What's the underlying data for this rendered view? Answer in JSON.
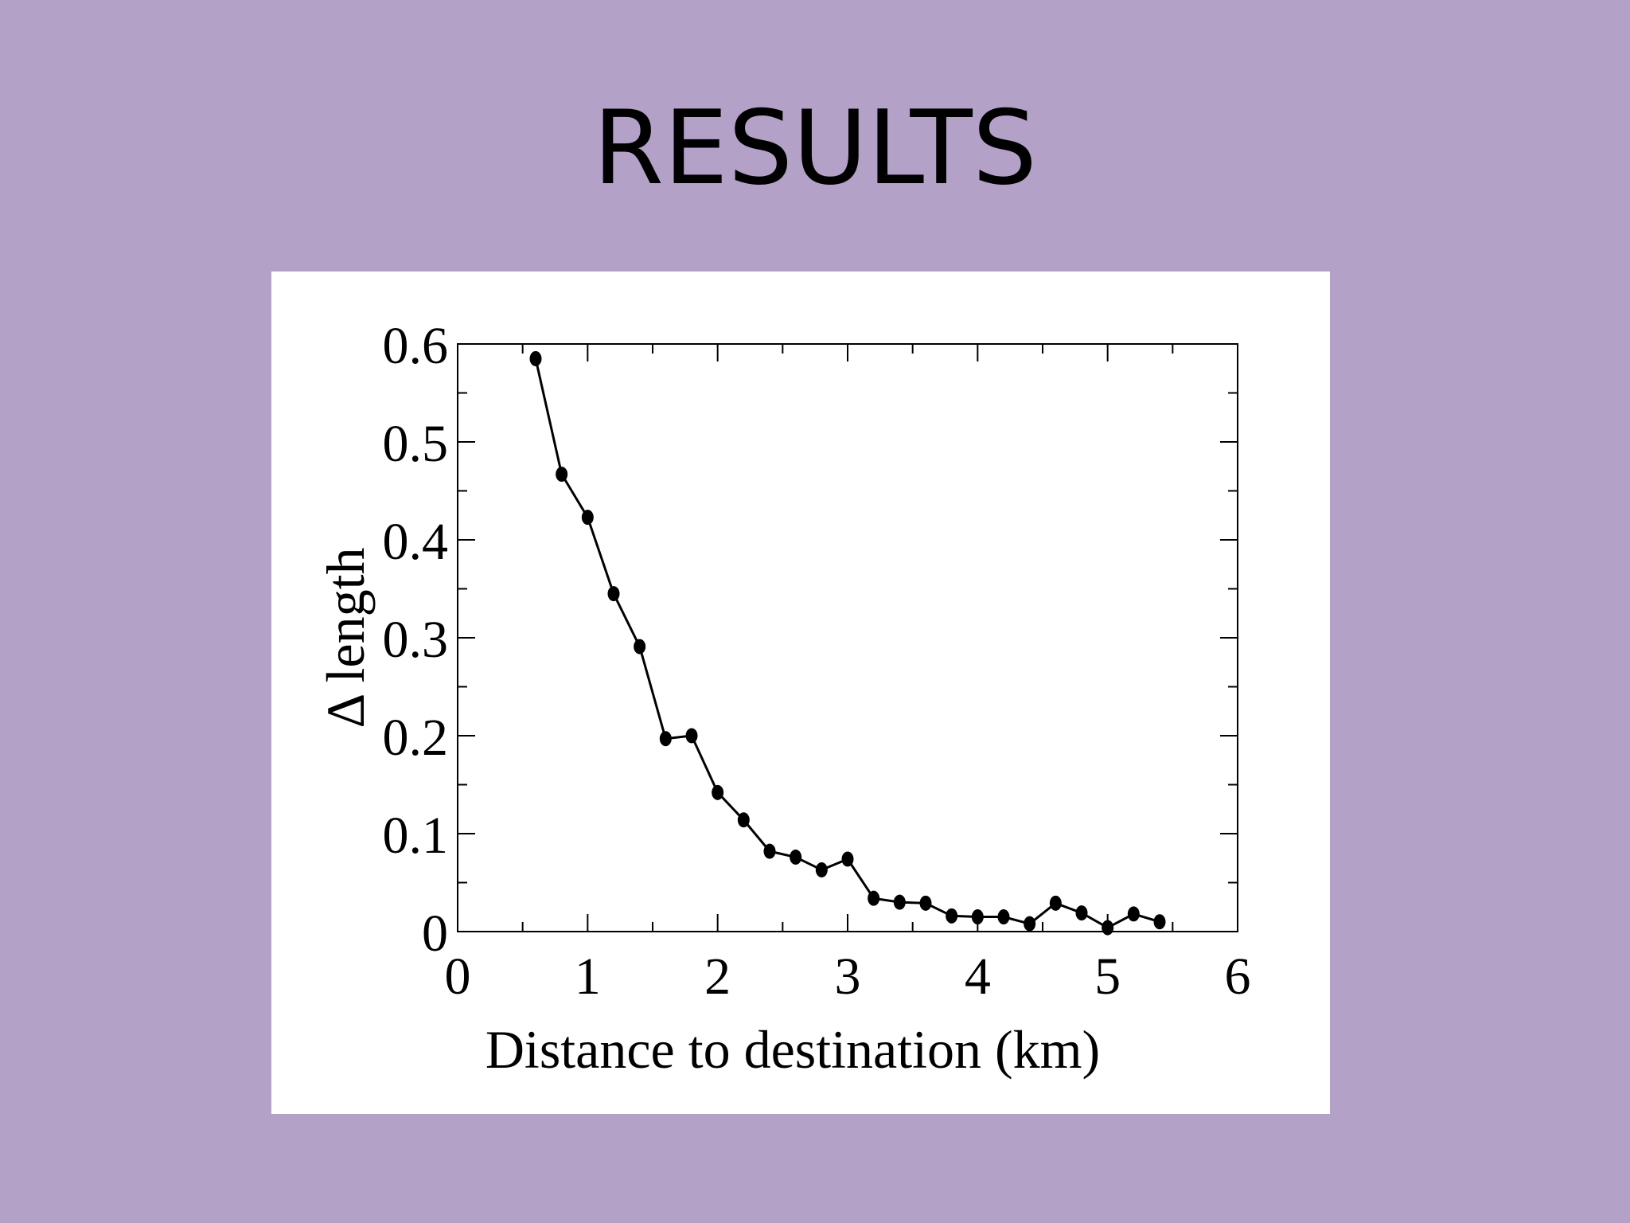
{
  "slide": {
    "title": "RESULTS"
  },
  "chart_data": {
    "type": "line",
    "xlabel": "Distance to destination (km)",
    "ylabel": "Δ length",
    "xlim": [
      0,
      6
    ],
    "ylim": [
      0,
      0.6
    ],
    "xticks": [
      "0",
      "1",
      "2",
      "3",
      "4",
      "5",
      "6"
    ],
    "yticks": [
      "0",
      "0.1",
      "0.2",
      "0.3",
      "0.4",
      "0.5",
      "0.6"
    ],
    "grid": false,
    "legend": "none",
    "series": [
      {
        "marker": "circle",
        "color": "#000000",
        "x": [
          0.6,
          0.8,
          1.0,
          1.2,
          1.4,
          1.6,
          1.8,
          2.0,
          2.2,
          2.4,
          2.6,
          2.8,
          3.0,
          3.2,
          3.4,
          3.6,
          3.8,
          4.0,
          4.2,
          4.4,
          4.6,
          4.8,
          5.0,
          5.2,
          5.4
        ],
        "y": [
          0.585,
          0.467,
          0.423,
          0.345,
          0.291,
          0.197,
          0.2,
          0.142,
          0.114,
          0.082,
          0.076,
          0.063,
          0.074,
          0.034,
          0.03,
          0.029,
          0.016,
          0.015,
          0.015,
          0.008,
          0.029,
          0.019,
          0.004,
          0.018,
          0.01
        ]
      }
    ]
  }
}
